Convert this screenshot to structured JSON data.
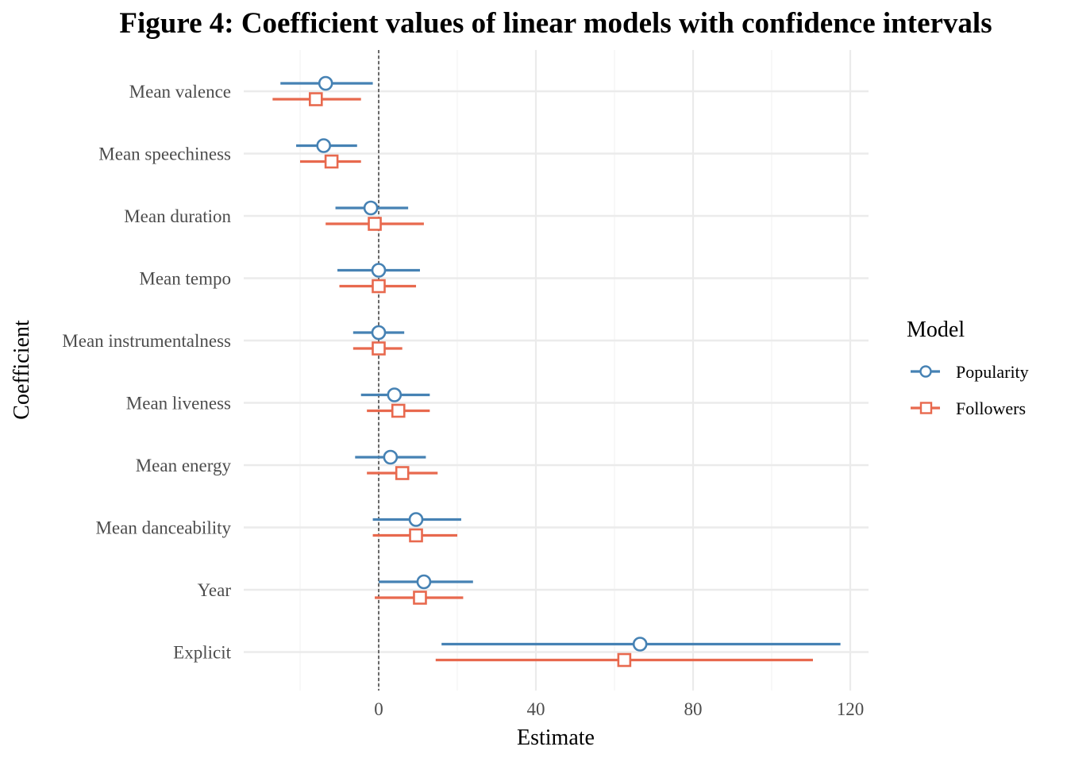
{
  "chart_data": {
    "type": "scatter",
    "subtype": "coefficient-plot-with-confidence-intervals",
    "title": "Figure 4: Coefficient values of linear models with confidence intervals",
    "xlabel": "Estimate",
    "ylabel": "Coefficient",
    "x_ticks": [
      0,
      40,
      80,
      120
    ],
    "x_tick_labels": [
      "0",
      "40",
      "80",
      "120"
    ],
    "xlim": [
      -34,
      125
    ],
    "reference_line": 0,
    "grid": true,
    "legend": {
      "title": "Model",
      "position": "right"
    },
    "categories": [
      "Mean valence",
      "Mean speechiness",
      "Mean duration",
      "Mean tempo",
      "Mean instrumentalness",
      "Mean liveness",
      "Mean energy",
      "Mean danceability",
      "Year",
      "Explicit"
    ],
    "series": [
      {
        "name": "Popularity",
        "color": "#4682b4",
        "marker": "circle",
        "estimate": [
          -13.5,
          -14,
          -2,
          0,
          0,
          4,
          3,
          9.5,
          11.5,
          66.5
        ],
        "lower": [
          -25,
          -21,
          -11,
          -10.5,
          -6.5,
          -4.5,
          -6,
          -1.5,
          0,
          16
        ],
        "upper": [
          -1.5,
          -5.5,
          7.5,
          10.5,
          6.5,
          13,
          12,
          21,
          24,
          117.5
        ]
      },
      {
        "name": "Followers",
        "color": "#e8694e",
        "marker": "square",
        "estimate": [
          -16,
          -12,
          -1,
          0,
          0,
          5,
          6,
          9.5,
          10.5,
          62.5
        ],
        "lower": [
          -27,
          -20,
          -13.5,
          -10,
          -6.5,
          -3,
          -3,
          -1.5,
          -1,
          14.5
        ],
        "upper": [
          -4.5,
          -4.5,
          11.5,
          9.5,
          6,
          13,
          15,
          20,
          21.5,
          110.5
        ]
      }
    ]
  }
}
